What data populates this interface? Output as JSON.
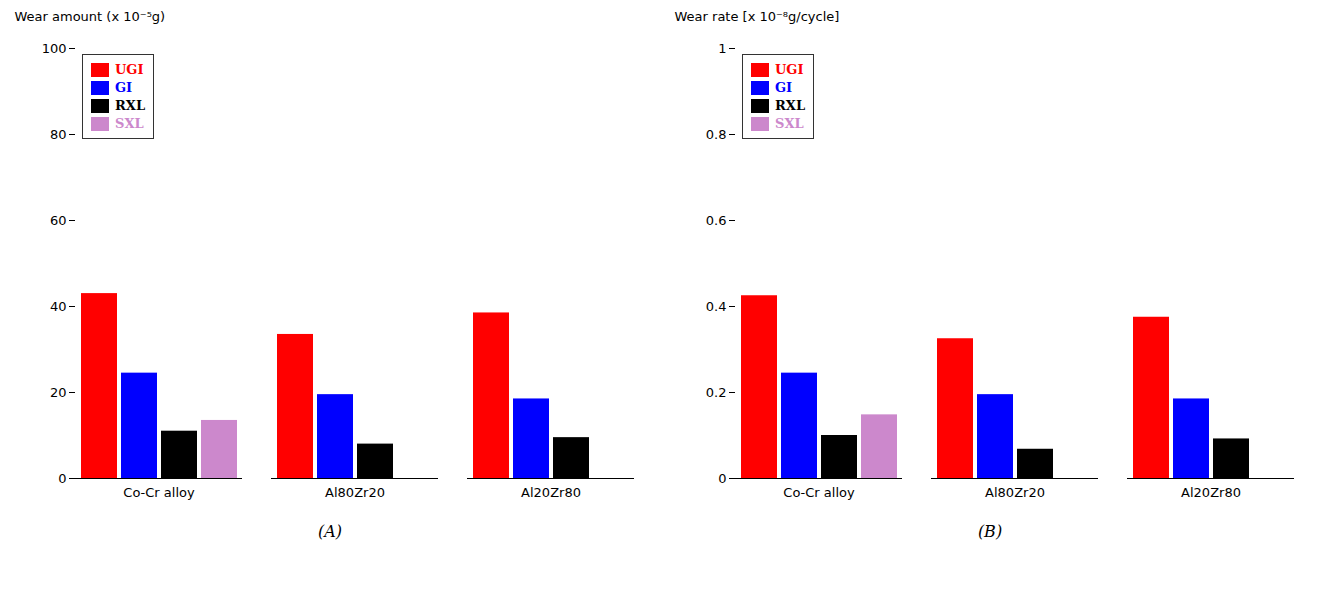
{
  "chart_data": [
    {
      "type": "bar",
      "categories": [
        "Co-Cr alloy",
        "Al80Zr20",
        "Al20Zr80"
      ],
      "series": [
        {
          "name": "UGI",
          "color": "#ff0000",
          "values": [
            43.0,
            33.5,
            38.5
          ]
        },
        {
          "name": "GI",
          "color": "#0000ff",
          "values": [
            24.5,
            19.5,
            18.5
          ]
        },
        {
          "name": "RXL",
          "color": "#000000",
          "values": [
            11.0,
            8.0,
            9.5
          ]
        },
        {
          "name": "SXL",
          "color": "#cc88cc",
          "values": [
            13.5,
            0.0,
            0.0
          ]
        }
      ],
      "ylabel": "Wear amount (x 10⁻⁵g)",
      "ylim": [
        0,
        100
      ],
      "yticks": [
        0,
        20,
        40,
        60,
        80,
        100
      ],
      "legend": "upper left",
      "grid": false,
      "annotations": [
        "(A)"
      ]
    },
    {
      "type": "bar",
      "categories": [
        "Co-Cr alloy",
        "Al80Zr20",
        "Al20Zr80"
      ],
      "series": [
        {
          "name": "UGI",
          "color": "#ff0000",
          "values": [
            0.425,
            0.325,
            0.375
          ]
        },
        {
          "name": "GI",
          "color": "#0000ff",
          "values": [
            0.245,
            0.195,
            0.185
          ]
        },
        {
          "name": "RXL",
          "color": "#000000",
          "values": [
            0.1,
            0.068,
            0.092
          ]
        },
        {
          "name": "SXL",
          "color": "#cc88cc",
          "values": [
            0.148,
            0.0,
            0.0
          ]
        }
      ],
      "ylabel": "Wear rate [x 10⁻⁸g/cycle]",
      "ylim": [
        0,
        1.0
      ],
      "yticks": [
        0,
        0.2,
        0.4,
        0.6,
        0.8,
        1.0
      ],
      "legend": "upper left",
      "grid": false,
      "annotations": [
        "(B)"
      ]
    }
  ]
}
